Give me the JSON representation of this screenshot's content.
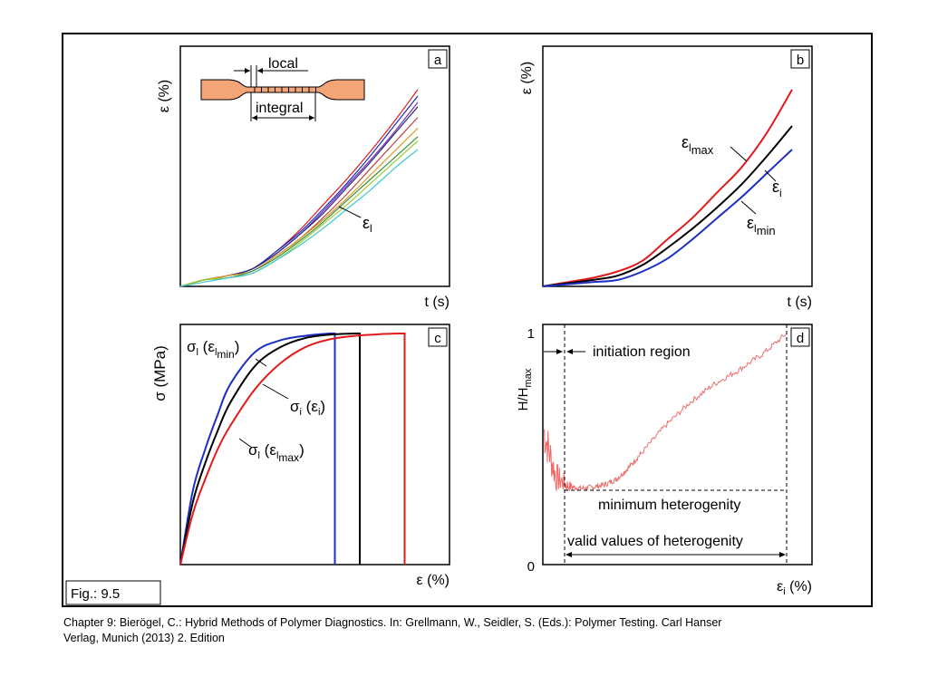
{
  "figure_label": "Fig.: 9.5",
  "caption": {
    "line1": "Chapter 9: Bierögel, C.: Hybrid Methods of Polymer Diagnostics. In: Grellmann, W., Seidler, S. (Eds.): Polymer Testing. Carl Hanser",
    "line2": "Verlag, Munich (2013) 2. Edition"
  },
  "colors": {
    "red": "#e11b1b",
    "black": "#000000",
    "blue": "#1c2fc4",
    "specimen": "#f4a576",
    "noisy_red": "#f06a6a"
  },
  "chart_data": [
    {
      "id": "a",
      "type": "line",
      "panel_label": "a",
      "ylabel_symbol": "ε",
      "ylabel_unit": "(%)",
      "xlabel": "t (s)",
      "curve_label_symbol": "ε",
      "curve_label_sub": "l",
      "inset": {
        "local_label": "local",
        "integral_label": "integral"
      },
      "x": [
        0,
        0.1,
        0.2,
        0.3,
        0.4,
        0.5,
        0.6,
        0.7,
        0.8,
        0.9,
        1.0
      ],
      "series": [
        {
          "color": "#e11b1b",
          "values": [
            0,
            0.03,
            0.05,
            0.08,
            0.16,
            0.26,
            0.38,
            0.5,
            0.63,
            0.77,
            0.92
          ]
        },
        {
          "color": "#1c2fc4",
          "values": [
            0,
            0.03,
            0.05,
            0.08,
            0.16,
            0.25,
            0.36,
            0.48,
            0.61,
            0.75,
            0.89
          ]
        },
        {
          "color": "#7a2fb0",
          "values": [
            0,
            0.03,
            0.05,
            0.08,
            0.15,
            0.24,
            0.35,
            0.47,
            0.59,
            0.72,
            0.86
          ]
        },
        {
          "color": "#2a2a7a",
          "values": [
            0,
            0.03,
            0.05,
            0.08,
            0.15,
            0.24,
            0.34,
            0.46,
            0.58,
            0.71,
            0.84
          ]
        },
        {
          "color": "#c04040",
          "values": [
            0,
            0.03,
            0.05,
            0.07,
            0.14,
            0.22,
            0.32,
            0.43,
            0.55,
            0.67,
            0.79
          ]
        },
        {
          "color": "#d4a020",
          "values": [
            0,
            0.03,
            0.05,
            0.07,
            0.14,
            0.22,
            0.31,
            0.41,
            0.52,
            0.63,
            0.74
          ]
        },
        {
          "color": "#3c8c3c",
          "values": [
            0,
            0.03,
            0.04,
            0.07,
            0.13,
            0.21,
            0.3,
            0.4,
            0.5,
            0.6,
            0.7
          ]
        },
        {
          "color": "#9acd32",
          "values": [
            0,
            0.03,
            0.04,
            0.06,
            0.12,
            0.2,
            0.29,
            0.38,
            0.48,
            0.58,
            0.68
          ]
        },
        {
          "color": "#40c8c8",
          "values": [
            0,
            0.02,
            0.04,
            0.06,
            0.12,
            0.19,
            0.27,
            0.36,
            0.45,
            0.55,
            0.64
          ]
        }
      ],
      "ylim": [
        0,
        1
      ],
      "xlim": [
        0,
        1
      ]
    },
    {
      "id": "b",
      "type": "line",
      "panel_label": "b",
      "ylabel_symbol": "ε",
      "ylabel_unit": "(%)",
      "xlabel": "t (s)",
      "labels": [
        {
          "symbol": "ε",
          "sub": "l",
          "subsub": "max"
        },
        {
          "symbol": "ε",
          "sub": "i",
          "subsub": ""
        },
        {
          "symbol": "ε",
          "sub": "l",
          "subsub": "min"
        }
      ],
      "x": [
        0,
        0.1,
        0.2,
        0.3,
        0.4,
        0.5,
        0.6,
        0.7,
        0.8,
        0.9,
        1.0
      ],
      "series": [
        {
          "color": "#e11b1b",
          "values": [
            0,
            0.02,
            0.04,
            0.07,
            0.12,
            0.22,
            0.32,
            0.44,
            0.56,
            0.72,
            0.92
          ]
        },
        {
          "color": "#000000",
          "values": [
            0,
            0.015,
            0.03,
            0.05,
            0.1,
            0.18,
            0.27,
            0.37,
            0.48,
            0.61,
            0.75
          ]
        },
        {
          "color": "#1c2fc4",
          "values": [
            0,
            0.01,
            0.02,
            0.03,
            0.07,
            0.13,
            0.22,
            0.32,
            0.42,
            0.53,
            0.64
          ]
        }
      ],
      "ylim": [
        0,
        1
      ],
      "xlim": [
        0,
        1
      ]
    },
    {
      "id": "c",
      "type": "line",
      "panel_label": "c",
      "ylabel": "σ (MPa)",
      "xlabel": "ε (%)",
      "labels": [
        {
          "symbol": "σ",
          "sub": "l",
          "arg": "ε",
          "argsub": "l",
          "argsubsub": "min"
        },
        {
          "symbol": "σ",
          "sub": "i",
          "arg": "ε",
          "argsub": "i",
          "argsubsub": ""
        },
        {
          "symbol": "σ",
          "sub": "l",
          "arg": "ε",
          "argsub": "l",
          "argsubsub": "max"
        }
      ],
      "series": [
        {
          "color": "#1c2fc4",
          "x": [
            0,
            0.05,
            0.1,
            0.15,
            0.2,
            0.3,
            0.4,
            0.5,
            0.6,
            0.62,
            0.62
          ],
          "values": [
            0,
            0.32,
            0.5,
            0.65,
            0.78,
            0.92,
            0.97,
            0.99,
            1.0,
            1.0,
            0
          ]
        },
        {
          "color": "#000000",
          "x": [
            0,
            0.05,
            0.1,
            0.15,
            0.2,
            0.3,
            0.4,
            0.5,
            0.6,
            0.7,
            0.72,
            0.72
          ],
          "values": [
            0,
            0.27,
            0.44,
            0.58,
            0.7,
            0.86,
            0.94,
            0.98,
            0.995,
            1.0,
            1.0,
            0
          ]
        },
        {
          "color": "#e11b1b",
          "x": [
            0,
            0.05,
            0.1,
            0.15,
            0.2,
            0.3,
            0.4,
            0.5,
            0.6,
            0.7,
            0.8,
            0.88,
            0.9,
            0.9
          ],
          "values": [
            0,
            0.22,
            0.37,
            0.5,
            0.6,
            0.76,
            0.87,
            0.94,
            0.975,
            0.99,
            0.997,
            1.0,
            1.0,
            0
          ]
        }
      ],
      "ylim": [
        0,
        1
      ],
      "xlim": [
        0,
        1
      ]
    },
    {
      "id": "d",
      "type": "line",
      "panel_label": "d",
      "ylabel_main": "H/H",
      "ylabel_sub": "max",
      "xlabel_symbol": "ε",
      "xlabel_sub": "i",
      "xlabel_unit": "(%)",
      "yticks": [
        {
          "value": 0,
          "label": "0"
        },
        {
          "value": 1,
          "label": "1"
        }
      ],
      "annotations": {
        "initiation": "initiation region",
        "minimum": "minimum heterogenity",
        "valid": "valid values of heterogenity"
      },
      "initiation_end": 0.1,
      "valid_end": 1.0,
      "minimum_level": 0.33,
      "x": [
        0,
        0.05,
        0.1,
        0.15,
        0.2,
        0.25,
        0.3,
        0.35,
        0.4,
        0.5,
        0.6,
        0.7,
        0.8,
        0.9,
        1.0
      ],
      "values": [
        0.58,
        0.38,
        0.34,
        0.33,
        0.335,
        0.345,
        0.37,
        0.42,
        0.48,
        0.6,
        0.7,
        0.78,
        0.84,
        0.91,
        1.0
      ],
      "ylim": [
        0,
        1
      ],
      "xlim": [
        0,
        1
      ]
    }
  ]
}
